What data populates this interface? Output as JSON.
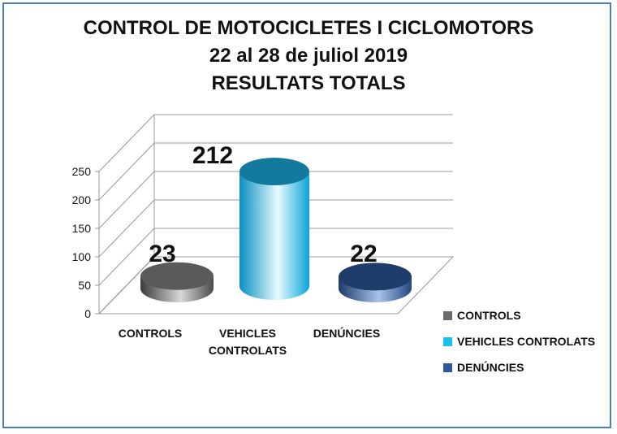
{
  "chart_data": {
    "type": "bar",
    "title_lines": [
      "CONTROL DE MOTOCICLETES I CICLOMOTORS",
      "22 al 28 de juliol 2019",
      "RESULTATS TOTALS"
    ],
    "categories": [
      "CONTROLS",
      "VEHICLES CONTROLATS",
      "DENÚNCIES"
    ],
    "category_lines": [
      [
        "CONTROLS"
      ],
      [
        "VEHICLES",
        "CONTROLATS"
      ],
      [
        "DENÚNCIES"
      ]
    ],
    "values": [
      23,
      212,
      22
    ],
    "data_labels": [
      "23",
      "212",
      "22"
    ],
    "yticks": [
      "0",
      "50",
      "100",
      "150",
      "200",
      "250"
    ],
    "ylim": [
      0,
      250
    ],
    "grid": true,
    "legend": {
      "placement": "right",
      "entries": [
        "CONTROLS",
        "VEHICLES CONTROLATS",
        "DENÚNCIES"
      ]
    },
    "colors": [
      "#6b6b6b",
      "#18c1f0",
      "#2e5a99"
    ]
  }
}
